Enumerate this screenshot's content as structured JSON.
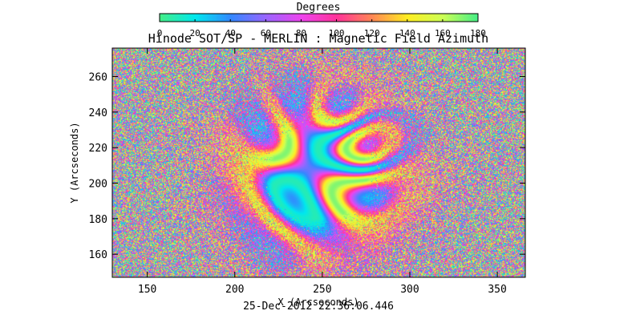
{
  "chart_data": {
    "type": "heatmap",
    "title": "Hinode SOT/SP - MERLIN : Magnetic Field Azimuth",
    "colorbar": {
      "label": "Degrees",
      "range": [
        0,
        180
      ],
      "ticks": [
        "0",
        "20",
        "40",
        "60",
        "80",
        "100",
        "120",
        "140",
        "160",
        "180"
      ],
      "colormap_stops": [
        "#44ee88",
        "#00e8ee",
        "#3388ff",
        "#9966ff",
        "#ee44ee",
        "#ff3399",
        "#ff8855",
        "#ffee22",
        "#ccff55",
        "#44ee88"
      ]
    },
    "xlabel": "X (Arcseconds)",
    "ylabel": "Y (Arcseconds)",
    "xlim": [
      130,
      366
    ],
    "ylim": [
      147,
      276
    ],
    "xticks": [
      150,
      200,
      250,
      300,
      350
    ],
    "yticks": [
      160,
      180,
      200,
      220,
      240,
      260
    ],
    "timestamp": "25-Dec-2012 22:36:06.446",
    "grid": false
  }
}
